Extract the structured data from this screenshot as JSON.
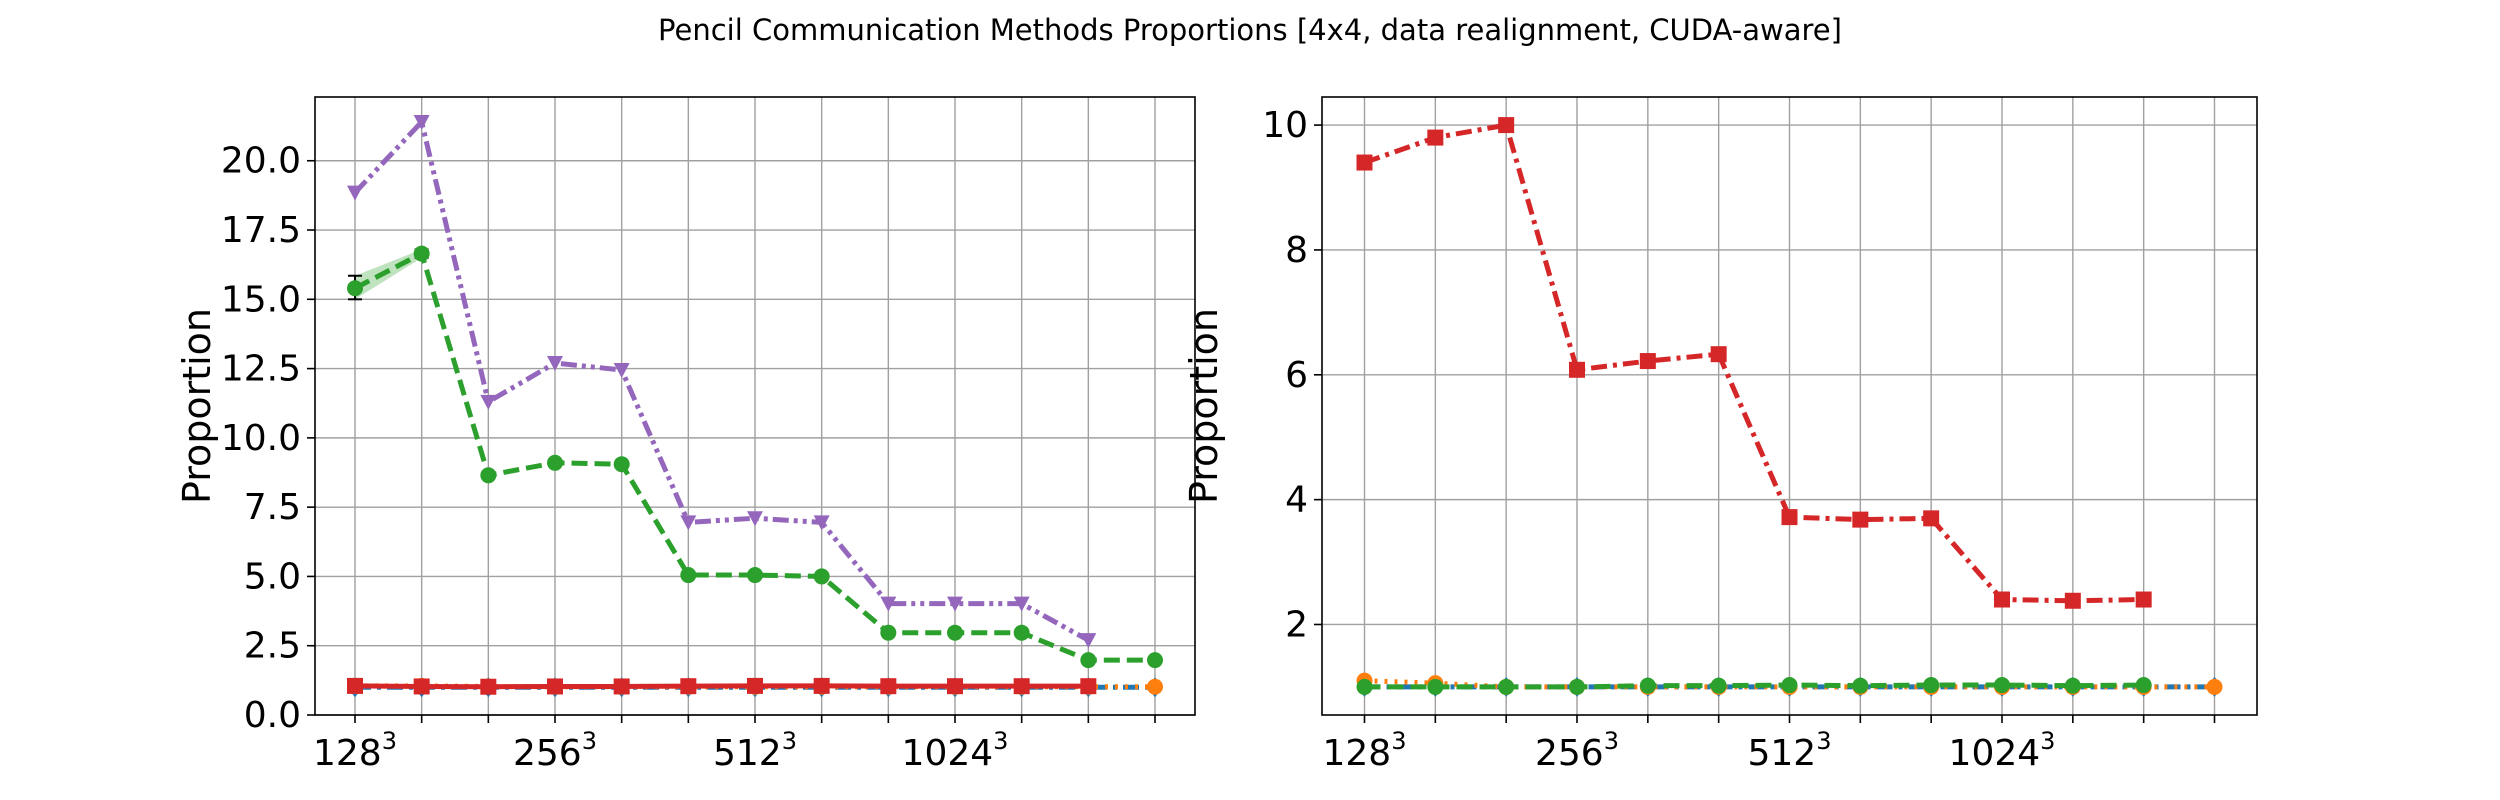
{
  "figure": {
    "title": "Pencil Communication Methods Proportions [4x4, data realignment, CUDA-aware]"
  },
  "chart_data": [
    {
      "type": "line",
      "title": "",
      "xlabel": "",
      "ylabel": "Proportion",
      "grid": true,
      "legend": "none",
      "x_positions": [
        0,
        1,
        2,
        3,
        4,
        5,
        6,
        7,
        8,
        9,
        10,
        11,
        12
      ],
      "x_tick_labels": [
        {
          "pos": 0,
          "base": "128",
          "exp": "3"
        },
        {
          "pos": 3,
          "base": "256",
          "exp": "3"
        },
        {
          "pos": 6,
          "base": "512",
          "exp": "3"
        },
        {
          "pos": 9,
          "base": "1024",
          "exp": "3"
        }
      ],
      "xlim": [
        -0.6,
        12.6
      ],
      "ylim": [
        0,
        22.3
      ],
      "y_ticks": [
        0.0,
        2.5,
        5.0,
        7.5,
        10.0,
        12.5,
        15.0,
        17.5,
        20.0
      ],
      "series": [
        {
          "color": "#1f77b4",
          "dash": "dashdot",
          "marker": "diamond",
          "values": [
            1.0,
            1.0,
            1.0,
            1.0,
            1.0,
            1.0,
            1.0,
            1.0,
            1.0,
            1.0,
            1.0,
            1.0,
            1.0
          ]
        },
        {
          "color": "#ff7f0e",
          "dash": "dotted",
          "marker": "circle",
          "values": [
            1.05,
            1.05,
            1.03,
            1.02,
            1.02,
            1.02,
            1.02,
            1.02,
            1.02,
            1.02,
            1.02,
            1.02,
            1.02
          ]
        },
        {
          "color": "#9467bd",
          "dash": "dashdotdot",
          "marker": "triangle-down",
          "values": [
            18.85,
            21.4,
            11.3,
            12.7,
            12.45,
            6.95,
            7.1,
            6.95,
            4.02,
            4.02,
            4.02,
            2.7,
            null
          ]
        },
        {
          "color": "#2ca02c",
          "dash": "dashed",
          "marker": "circle",
          "values": [
            15.4,
            16.65,
            8.65,
            9.1,
            9.05,
            5.05,
            5.05,
            5.0,
            2.97,
            2.97,
            2.97,
            1.98,
            1.98
          ],
          "band": [
            [
              15.0,
              15.85
            ],
            [
              16.5,
              16.8
            ],
            null,
            null,
            null,
            null,
            null,
            null,
            null,
            null,
            null,
            null,
            null
          ]
        },
        {
          "color": "#d62728",
          "dash": "solid",
          "marker": "square",
          "values": [
            1.05,
            1.03,
            1.02,
            1.03,
            1.03,
            1.04,
            1.05,
            1.05,
            1.04,
            1.04,
            1.04,
            1.04,
            null
          ]
        }
      ]
    },
    {
      "type": "line",
      "title": "",
      "xlabel": "",
      "ylabel": "Proportion",
      "grid": true,
      "legend": "none",
      "x_positions": [
        0,
        1,
        2,
        3,
        4,
        5,
        6,
        7,
        8,
        9,
        10,
        11,
        12
      ],
      "x_tick_labels": [
        {
          "pos": 0,
          "base": "128",
          "exp": "3"
        },
        {
          "pos": 3,
          "base": "256",
          "exp": "3"
        },
        {
          "pos": 6,
          "base": "512",
          "exp": "3"
        },
        {
          "pos": 9,
          "base": "1024",
          "exp": "3"
        }
      ],
      "xlim": [
        -0.6,
        12.6
      ],
      "ylim": [
        0.55,
        10.45
      ],
      "y_ticks": [
        2,
        4,
        6,
        8,
        10
      ],
      "series": [
        {
          "color": "#d62728",
          "dash": "dashdot",
          "marker": "square",
          "values": [
            9.4,
            9.8,
            10.0,
            6.08,
            6.22,
            6.33,
            3.72,
            3.68,
            3.7,
            2.4,
            2.38,
            2.4,
            null
          ]
        },
        {
          "color": "#1f77b4",
          "dash": "dashdot",
          "marker": "diamond",
          "values": [
            1.0,
            1.0,
            1.0,
            1.0,
            1.0,
            1.0,
            1.0,
            1.0,
            1.0,
            1.0,
            1.0,
            1.0,
            1.0
          ]
        },
        {
          "color": "#ff7f0e",
          "dash": "dotted",
          "marker": "circle",
          "values": [
            1.1,
            1.06,
            1.0,
            1.0,
            1.0,
            1.0,
            1.0,
            1.0,
            1.0,
            1.0,
            1.0,
            1.0,
            1.0
          ]
        },
        {
          "color": "#2ca02c",
          "dash": "dashed",
          "marker": "circle",
          "values": [
            1.0,
            1.0,
            1.0,
            1.0,
            1.02,
            1.02,
            1.03,
            1.02,
            1.03,
            1.03,
            1.02,
            1.03,
            null
          ]
        }
      ]
    }
  ]
}
